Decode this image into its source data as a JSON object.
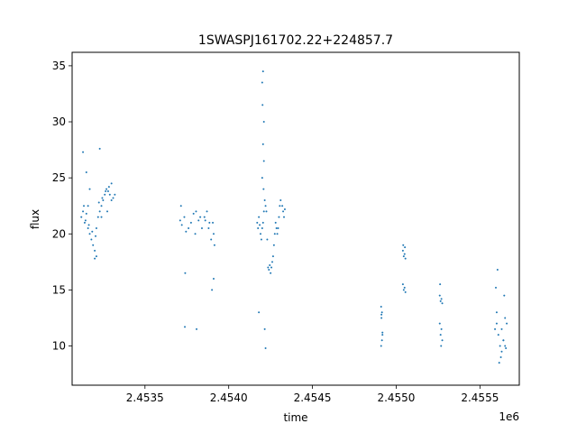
{
  "chart_data": {
    "type": "scatter",
    "title": "1SWASPJ161702.22+224857.7",
    "xlabel": "time",
    "ylabel": "flux",
    "x_offset_label": "1e6",
    "xlim": [
      2453065,
      2455735
    ],
    "ylim": [
      6.5,
      36.2
    ],
    "x_ticks": [
      2453500,
      2454000,
      2454500,
      2455000,
      2455500
    ],
    "x_tick_labels": [
      "2.4535",
      "2.4540",
      "2.4545",
      "2.4550",
      "2.4555"
    ],
    "y_ticks": [
      10,
      15,
      20,
      25,
      30,
      35
    ],
    "y_tick_labels": [
      "10",
      "15",
      "20",
      "25",
      "30",
      "35"
    ],
    "grid": false,
    "marker_color": "#1f77b4",
    "series": [
      {
        "x": [
          2453120,
          2453130,
          2453140,
          2453150,
          2453160,
          2453170,
          2453180,
          2453190,
          2453200,
          2453210,
          2453220,
          2453230,
          2453240,
          2453250,
          2453260,
          2453270,
          2453280,
          2453290,
          2453300,
          2453310,
          2453320,
          2453135,
          2453145,
          2453165,
          2453185,
          2453205,
          2453225,
          2453245,
          2453265,
          2453285,
          2453150,
          2453170,
          2453210,
          2453240,
          2453275,
          2453130,
          2453160,
          2453200,
          2453230,
          2453300,
          2453710,
          2453720,
          2453735,
          2453760,
          2453775,
          2453790,
          2453805,
          2453820,
          2453840,
          2453855,
          2453870,
          2453885,
          2453715,
          2453745,
          2453800,
          2453830,
          2453860,
          2453880,
          2453895,
          2453905,
          2453910,
          2453915,
          2453738,
          2453808,
          2453900,
          2453740,
          2453910,
          2454170,
          2454175,
          2454180,
          2454185,
          2454190,
          2454195,
          2454200,
          2454205,
          2454210,
          2454215,
          2454220,
          2454225,
          2454230,
          2454235,
          2454240,
          2454245,
          2454250,
          2454255,
          2454260,
          2454265,
          2454270,
          2454275,
          2454280,
          2454285,
          2454290,
          2454295,
          2454300,
          2454305,
          2454310,
          2454320,
          2454325,
          2454330,
          2454335,
          2454200,
          2454205,
          2454210,
          2454205,
          2454200,
          2454210,
          2454208,
          2454202,
          2454180,
          2454215,
          2454220,
          2454910,
          2454912,
          2454915,
          2454918,
          2454910,
          2454915,
          2454912,
          2454918,
          2455040,
          2455045,
          2455050,
          2455055,
          2455040,
          2455045,
          2455050,
          2455055,
          2455042,
          2455052,
          2455260,
          2455265,
          2455270,
          2455275,
          2455260,
          2455265,
          2455270,
          2455275,
          2455262,
          2455268,
          2455590,
          2455600,
          2455610,
          2455620,
          2455630,
          2455640,
          2455650,
          2455660,
          2455600,
          2455615,
          2455625,
          2455640,
          2455655,
          2455595,
          2455630,
          2455645,
          2455605,
          2455650
        ],
        "y": [
          21.5,
          22.0,
          21.0,
          21.8,
          20.5,
          20.0,
          19.5,
          19.0,
          18.5,
          20.5,
          21.5,
          22.0,
          22.5,
          23.0,
          23.5,
          24.0,
          23.8,
          23.5,
          23.0,
          23.2,
          23.5,
          22.5,
          21.2,
          20.8,
          20.2,
          19.8,
          22.8,
          23.2,
          23.8,
          24.2,
          25.5,
          24.0,
          18.0,
          21.5,
          22.0,
          27.3,
          22.5,
          17.8,
          27.6,
          24.5,
          21.2,
          20.8,
          21.5,
          20.5,
          21.0,
          21.8,
          22.0,
          21.2,
          20.5,
          21.5,
          22.0,
          21.0,
          22.5,
          20.2,
          20.0,
          21.5,
          21.2,
          20.5,
          19.5,
          21.0,
          20.0,
          19.0,
          11.7,
          11.5,
          15.0,
          16.5,
          16.0,
          21.0,
          20.5,
          21.5,
          20.8,
          20.0,
          19.5,
          20.5,
          21.0,
          22.0,
          23.0,
          22.5,
          22.0,
          19.5,
          17.0,
          16.8,
          17.2,
          16.5,
          17.0,
          17.5,
          18.0,
          19.0,
          20.0,
          21.0,
          20.5,
          20.0,
          20.5,
          21.5,
          22.5,
          23.0,
          22.5,
          22.0,
          21.5,
          22.2,
          33.5,
          34.5,
          30.0,
          28.0,
          25.0,
          26.5,
          24.0,
          31.5,
          13.0,
          11.5,
          9.8,
          13.5,
          12.5,
          13.0,
          11.0,
          10.0,
          10.5,
          12.8,
          11.2,
          18.5,
          18.0,
          18.2,
          17.8,
          15.5,
          15.0,
          15.2,
          14.8,
          19.0,
          18.8,
          14.5,
          14.0,
          14.2,
          13.8,
          12.0,
          11.0,
          11.5,
          10.5,
          15.5,
          10.0,
          11.5,
          12.0,
          11.0,
          10.0,
          9.5,
          10.5,
          12.5,
          12.0,
          13.0,
          8.5,
          9.0,
          10.5,
          9.8,
          15.2,
          11.5,
          14.5,
          16.8,
          10.0
        ]
      }
    ]
  }
}
